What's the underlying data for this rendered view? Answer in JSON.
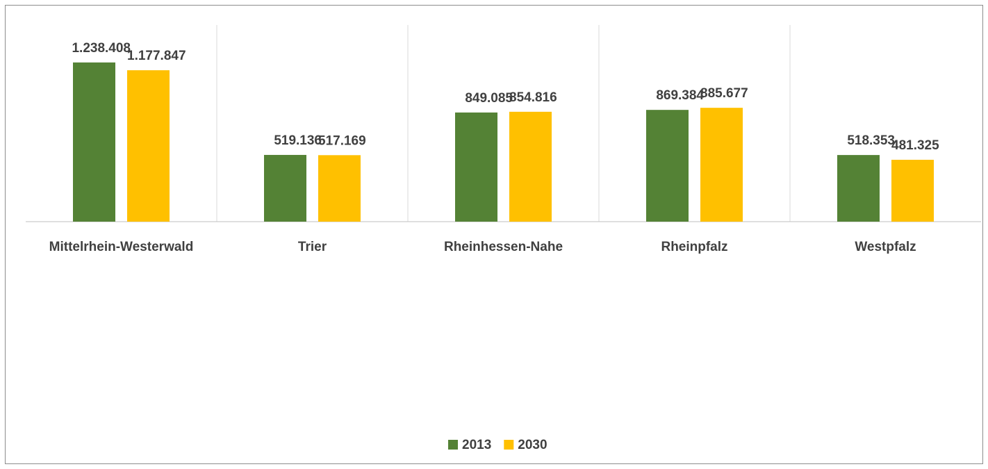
{
  "chart_data": {
    "type": "bar",
    "categories": [
      "Mittelrhein-Westerwald",
      "Trier",
      "Rheinhessen-Nahe",
      "Rheinpfalz",
      "Westpfalz"
    ],
    "series": [
      {
        "name": "2013",
        "color": "#548235",
        "values": [
          1238408,
          519136,
          849085,
          869384,
          518353
        ],
        "value_labels": [
          "1.238.408",
          "519.136",
          "849.085",
          "869.384",
          "518.353"
        ]
      },
      {
        "name": "2030",
        "color": "#ffc000",
        "values": [
          1177847,
          517169,
          854816,
          885677,
          481325
        ],
        "value_labels": [
          "1.177.847",
          "517.169",
          "854.816",
          "885.677",
          "481.325"
        ]
      }
    ],
    "ylim": [
      0,
      1400000
    ],
    "legend": "bottom"
  }
}
